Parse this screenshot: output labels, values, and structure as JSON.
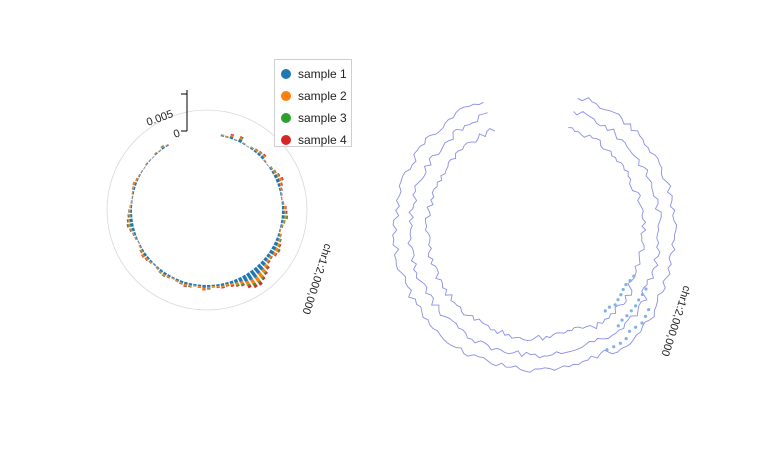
{
  "chart_data": [
    {
      "type": "circular-stacked-bar",
      "chromosome": "chr1",
      "position_label": "chr1:2,000,000",
      "radial_axis": {
        "ticks": [
          0,
          0.005
        ],
        "tick_labels": [
          "0",
          "0.005"
        ],
        "range": [
          0,
          0.0065
        ]
      },
      "legend": {
        "placement": "top-right",
        "entries": [
          "sample 1",
          "sample 2",
          "sample 3",
          "sample 4"
        ]
      },
      "series": [
        {
          "name": "sample 1",
          "color": "#1f77b4"
        },
        {
          "name": "sample 2",
          "color": "#ff7f0e"
        },
        {
          "name": "sample 3",
          "color": "#2ca02c"
        },
        {
          "name": "sample 4",
          "color": "#d62728"
        }
      ],
      "approx_total_stack_per_bin": [
        0.0005,
        0.0004,
        0.0012,
        0.0003,
        0.0015,
        0.0004,
        0.0002,
        0.0006,
        0.0009,
        0.0011,
        0.0013,
        0.0004,
        0.0002,
        0.0007,
        0.001,
        0.0014,
        0.0018,
        0.0012,
        0.0008,
        0.0005,
        0.0003,
        0.0006,
        0.0011,
        0.0013,
        0.0015,
        0.001,
        0.0007,
        0.0004,
        0.0009,
        0.0013,
        0.0017,
        0.0021,
        0.0019,
        0.0014,
        0.0016,
        0.0024,
        0.003,
        0.0036,
        0.0042,
        0.004,
        0.0033,
        0.0022,
        0.0018,
        0.0014,
        0.001,
        0.0012,
        0.0009,
        0.0007,
        0.0011,
        0.0013,
        0.0008,
        0.0006,
        0.001,
        0.0012,
        0.0009,
        0.0007,
        0.0005,
        0.0008,
        0.0011,
        0.0009,
        0.0006,
        0.0004,
        0.0007,
        0.001,
        0.0012,
        0.0009,
        0.0005,
        0.0003,
        0.0006,
        0.0008,
        0.0012,
        0.0016,
        0.0014,
        0.0011,
        0.0009,
        0.0006,
        0.0004,
        0.0003,
        0.0005,
        0.0007,
        0.0009,
        0.0006,
        0.0004,
        0.0003,
        0.0002,
        0.0004,
        0.0003,
        0.0002,
        0.0005,
        0.0003,
        0.0008,
        0.0004
      ]
    },
    {
      "type": "circular-line",
      "chromosome": "chr1",
      "position_label": "chr1:2,000,000",
      "color": "#8a8fe6",
      "highlight_color": "#7fb2e6",
      "tracks": 3
    }
  ]
}
